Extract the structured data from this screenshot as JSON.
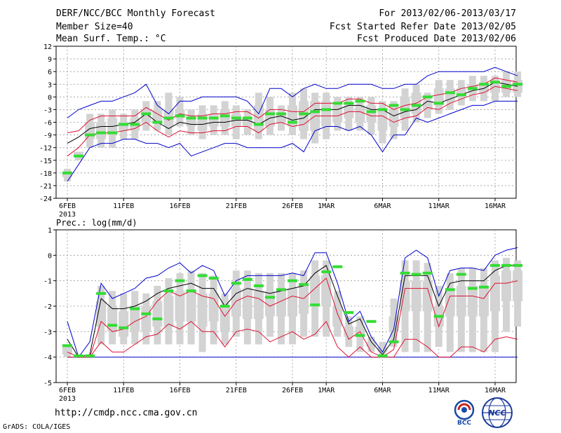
{
  "header": {
    "title": "DERF/NCC/BCC Monthly Forecast",
    "member_size": "Member Size=40",
    "variable": "Mean Surf. Temp.: °C",
    "period": "For 2013/02/06-2013/03/17",
    "started_refer": "Fcst Started Refer Date 2013/02/05",
    "produced": "Fcst Produced Date 2013/02/06"
  },
  "footer": {
    "url": "http://cmdp.ncc.cma.gov.cn",
    "grads": "GrADS: COLA/IGES",
    "logo_bcc": "BCC",
    "logo_ncc": "NCC"
  },
  "colors": {
    "box": "#d3d3d3",
    "observed": "#33dd33",
    "mean": "#000000",
    "spread": "#dd1133",
    "envelope": "#0000cc",
    "grid": "#999999"
  },
  "chart_data": [
    {
      "type": "box-plume",
      "title": "Mean Surf. Temp.: °C",
      "xlabel": "",
      "ylabel": "°C",
      "ylim": [
        -24,
        12
      ],
      "yticks": [
        12,
        9,
        6,
        3,
        0,
        -3,
        -6,
        -9,
        -12,
        -15,
        -18,
        -21,
        -24
      ],
      "xticks": [
        {
          "day": 0,
          "label": "6FEB"
        },
        {
          "day": 5,
          "label": "11FEB"
        },
        {
          "day": 10,
          "label": "16FEB"
        },
        {
          "day": 15,
          "label": "21FEB"
        },
        {
          "day": 20,
          "label": "26FEB"
        },
        {
          "day": 23,
          "label": "1MAR"
        },
        {
          "day": 28,
          "label": "6MAR"
        },
        {
          "day": 33,
          "label": "11MAR"
        },
        {
          "day": 38,
          "label": "16MAR"
        }
      ],
      "year_label": "2013",
      "box_low": [
        -20,
        -15,
        -12,
        -12,
        -12,
        -10,
        -10,
        -8,
        -8,
        -9,
        -7,
        -9,
        -10,
        -9,
        -9,
        -10,
        -9,
        -10,
        -9,
        -8,
        -9,
        -10,
        -11,
        -10,
        -8,
        -8,
        -8,
        -9,
        -11,
        -10,
        -8,
        -6,
        -5,
        -4,
        -3,
        -2,
        -1,
        -1,
        -1,
        0,
        0
      ],
      "box_high": [
        -17,
        -13,
        -4,
        -4,
        -3,
        -4,
        -3,
        -1,
        -1,
        1,
        0,
        -3,
        -2,
        -2,
        -1,
        -2,
        -3,
        1,
        0,
        -2,
        1,
        2,
        1,
        1,
        0,
        0,
        0,
        0,
        -1,
        -1,
        2,
        3,
        1,
        4,
        4,
        4,
        5,
        5,
        5,
        6,
        6
      ],
      "box_q1": [
        -19,
        -14,
        -10,
        -10,
        -9,
        -8,
        -8,
        -6,
        -6,
        -7,
        -5,
        -7,
        -8,
        -7,
        -7,
        -7,
        -7,
        -8,
        -7,
        -6,
        -7,
        -8,
        -8,
        -7,
        -6,
        -5,
        -6,
        -6,
        -8,
        -7,
        -5,
        -4,
        -3,
        -2,
        -1,
        0,
        1,
        1,
        1,
        1,
        1
      ],
      "box_q3": [
        -18,
        -13,
        -6,
        -6,
        -5,
        -6,
        -5,
        -3,
        -3,
        -3,
        -3,
        -5,
        -4,
        -4,
        -3,
        -4,
        -5,
        -2,
        -3,
        -4,
        -2,
        -1,
        -1,
        -1,
        -2,
        -2,
        -2,
        -2,
        -3,
        -3,
        0,
        1,
        -1,
        2,
        2,
        2,
        3,
        3,
        3,
        4,
        4
      ],
      "mean": [
        -11,
        -9.5,
        -7.5,
        -7,
        -7,
        -6.5,
        -6,
        -4,
        -6,
        -7.5,
        -6,
        -6.5,
        -6.5,
        -6,
        -6,
        -5.5,
        -5.5,
        -6.5,
        -5,
        -4.5,
        -5.5,
        -5,
        -3,
        -3,
        -3,
        -2,
        -2,
        -3,
        -3,
        -4.5,
        -3.5,
        -3,
        -1,
        -1.5,
        -0.5,
        0.5,
        1.5,
        2,
        3.5,
        3,
        2.5
      ],
      "red_upper": [
        -8.5,
        -8,
        -5.5,
        -4.5,
        -4.5,
        -4.5,
        -4.5,
        -2.5,
        -4,
        -5.5,
        -4,
        -4.5,
        -4.5,
        -4,
        -4,
        -3.5,
        -3.5,
        -5,
        -3,
        -3,
        -3.5,
        -3.5,
        -1.5,
        -1.5,
        -1.5,
        -0.5,
        -0.5,
        -1.5,
        -1.5,
        -3,
        -2,
        -1.5,
        0,
        0.5,
        1,
        2,
        2.5,
        3,
        4.5,
        4,
        3.5
      ],
      "red_lower": [
        -14,
        -12,
        -9,
        -8.5,
        -8.5,
        -8,
        -7.5,
        -6,
        -8,
        -9.5,
        -8,
        -8.5,
        -8.5,
        -8,
        -8,
        -7,
        -7,
        -8.5,
        -6.5,
        -6,
        -7,
        -6.5,
        -4.5,
        -4.5,
        -4.5,
        -3.5,
        -3.5,
        -4.5,
        -4.5,
        -6,
        -5,
        -4.5,
        -2.5,
        -3,
        -1.5,
        -0.5,
        0.5,
        1,
        2.5,
        2,
        1.5
      ],
      "blue_upper": [
        -5,
        -3,
        -2,
        -1,
        -1,
        0,
        1,
        3,
        -2,
        -4,
        -1,
        -1,
        0,
        0,
        0,
        0,
        -1,
        -4,
        2,
        2,
        0,
        2,
        3,
        2,
        2,
        3,
        3,
        3,
        2,
        2,
        3,
        3,
        5,
        6,
        6,
        6,
        6,
        6,
        7,
        6,
        5
      ],
      "blue_lower": [
        -20,
        -16,
        -12,
        -11,
        -11,
        -10,
        -10,
        -11,
        -11,
        -12,
        -11,
        -14,
        -13,
        -12,
        -11,
        -11,
        -12,
        -12,
        -12,
        -12,
        -11,
        -13,
        -8,
        -7,
        -7,
        -8,
        -7,
        -9,
        -13,
        -9,
        -9,
        -5,
        -6,
        -5,
        -4,
        -3,
        -2,
        -2,
        -1,
        -1,
        -1
      ],
      "observed": [
        -18,
        -14,
        -9,
        -8.5,
        -8.5,
        -6.5,
        -6.5,
        -4,
        -6,
        -5,
        -4.5,
        -5,
        -5,
        -5,
        -4.5,
        -5,
        -5,
        -6.5,
        -4,
        -4,
        -6,
        -4,
        -3.5,
        -3,
        -1.5,
        -1.5,
        -1,
        -3.5,
        -3,
        -2,
        -3,
        -2,
        0,
        -1.5,
        1,
        0.5,
        2,
        3,
        3.5,
        2.5,
        3
      ]
    },
    {
      "type": "box-plume",
      "title": "Prec.: log(mm/d)",
      "xlabel": "",
      "ylabel": "log(mm/d)",
      "ylim": [
        -5,
        1
      ],
      "yticks": [
        1,
        0,
        -1,
        -2,
        -3,
        -4,
        -5
      ],
      "xticks": [
        {
          "day": 0,
          "label": "6FEB"
        },
        {
          "day": 5,
          "label": "11FEB"
        },
        {
          "day": 10,
          "label": "16FEB"
        },
        {
          "day": 15,
          "label": "21FEB"
        },
        {
          "day": 20,
          "label": "26FEB"
        },
        {
          "day": 23,
          "label": "1MAR"
        },
        {
          "day": 28,
          "label": "6MAR"
        },
        {
          "day": 33,
          "label": "11MAR"
        },
        {
          "day": 38,
          "label": "16MAR"
        }
      ],
      "year_label": "2013",
      "box_low": [
        -4,
        -4,
        -4,
        -3.5,
        -3.5,
        -3.5,
        -3.5,
        -3.5,
        -3.5,
        -3.5,
        -3.5,
        -3.5,
        -3.8,
        -3.5,
        -3.5,
        -3.2,
        -3.5,
        -3.5,
        -3.2,
        -3.5,
        -3.5,
        -3.2,
        -3.2,
        -3.2,
        -3.2,
        -3.6,
        -3.8,
        -3.8,
        -4,
        -3.6,
        -3.8,
        -3.8,
        -3.8,
        -3.6,
        -3.8,
        -3.8,
        -3.8,
        -3.8,
        -3.8,
        -3,
        -2.8
      ],
      "box_high": [
        -3.5,
        -4,
        -4,
        -1.2,
        -1.4,
        -1.5,
        -1.4,
        -1.5,
        -1.2,
        -0.9,
        -0.7,
        -0.6,
        -0.7,
        -0.8,
        -1.5,
        -0.6,
        -0.6,
        -0.7,
        -0.7,
        -0.7,
        -0.7,
        -0.6,
        -0.2,
        -0.2,
        -1.4,
        -2.4,
        -2.4,
        -3.2,
        -3.4,
        -1.7,
        -0.2,
        -0.2,
        -0.3,
        -1.2,
        -0.7,
        -0.5,
        -0.5,
        -0.5,
        -0.2,
        -0.1,
        -0.2
      ],
      "box_q1": [
        -3.9,
        -4,
        -4,
        -2.8,
        -3,
        -3.2,
        -3,
        -3,
        -2.8,
        -2.8,
        -2.6,
        -2.6,
        -2.8,
        -2.6,
        -3,
        -2.4,
        -2.5,
        -2.5,
        -2.4,
        -2.4,
        -2.4,
        -2.3,
        -2,
        -2,
        -2.8,
        -3.2,
        -3.2,
        -3.6,
        -3.8,
        -3,
        -2.2,
        -2.2,
        -2.2,
        -2.8,
        -2.4,
        -2.4,
        -2.4,
        -2.4,
        -2.2,
        -1.8,
        -1.8
      ],
      "box_q3": [
        -3.6,
        -4,
        -4,
        -1.8,
        -2,
        -2.2,
        -2,
        -2,
        -1.8,
        -1.6,
        -1.4,
        -1.4,
        -1.5,
        -1.5,
        -2,
        -1.3,
        -1.3,
        -1.4,
        -1.4,
        -1.4,
        -1.3,
        -1.2,
        -0.8,
        -0.8,
        -2,
        -2.8,
        -2.8,
        -3.4,
        -3.6,
        -2.4,
        -1,
        -1,
        -1,
        -2,
        -1.4,
        -1.2,
        -1.2,
        -1.2,
        -0.8,
        -0.6,
        -0.6
      ],
      "mean": [
        -3.3,
        -4,
        -3.9,
        -1.7,
        -2.1,
        -2.1,
        -2,
        -1.8,
        -1.5,
        -1.3,
        -1.2,
        -1.1,
        -1.3,
        -1.3,
        -2,
        -1.5,
        -1.3,
        -1.4,
        -1.5,
        -1.4,
        -1.3,
        -1.2,
        -0.7,
        -0.4,
        -1.6,
        -2.7,
        -2.5,
        -3.4,
        -3.9,
        -3.3,
        -0.8,
        -0.8,
        -0.8,
        -2,
        -1.1,
        -1,
        -1,
        -1,
        -0.6,
        -0.4,
        -0.4
      ],
      "red_upper": [
        -3.8,
        -4,
        -4,
        -2.6,
        -3,
        -2.9,
        -2.6,
        -2.4,
        -1.8,
        -1.4,
        -1.6,
        -1.4,
        -1.6,
        -1.7,
        -2.4,
        -1.8,
        -1.6,
        -1.7,
        -2,
        -1.8,
        -1.6,
        -1.7,
        -1.3,
        -0.9,
        -2.3,
        -3.3,
        -3,
        -3.8,
        -4,
        -3.7,
        -1.3,
        -1.3,
        -1.3,
        -2.8,
        -1.6,
        -1.6,
        -1.6,
        -1.7,
        -1.1,
        -1.1,
        -1
      ],
      "red_lower": [
        -4,
        -4,
        -4,
        -3.4,
        -3.8,
        -3.8,
        -3.5,
        -3.2,
        -3.1,
        -2.7,
        -2.9,
        -2.6,
        -3,
        -3,
        -3.6,
        -3,
        -2.9,
        -3,
        -3.4,
        -3.2,
        -3,
        -3.3,
        -3.1,
        -2.6,
        -3.6,
        -4,
        -3.6,
        -4,
        -4,
        -4,
        -3.3,
        -3.3,
        -3.6,
        -4,
        -4,
        -3.6,
        -3.6,
        -3.8,
        -3.3,
        -3.2,
        -3.3
      ],
      "blue_upper": [
        -2.6,
        -4,
        -3.4,
        -1.1,
        -1.7,
        -1.5,
        -1.3,
        -0.9,
        -0.8,
        -0.5,
        -0.3,
        -0.7,
        -0.4,
        -0.6,
        -1.6,
        -1,
        -0.8,
        -0.8,
        -0.8,
        -0.8,
        -0.7,
        -0.8,
        0.1,
        0.1,
        -1.1,
        -2.6,
        -2.2,
        -3.2,
        -3.8,
        -2.9,
        -0.1,
        0.2,
        -0.1,
        -1.6,
        -0.6,
        -0.5,
        -0.5,
        -0.6,
        0,
        0.2,
        0.3
      ],
      "blue_lower": [
        -4,
        -4,
        -4,
        -4,
        -4,
        -4,
        -4,
        -4,
        -4,
        -4,
        -4,
        -4,
        -4,
        -4,
        -4,
        -4,
        -4,
        -4,
        -4,
        -4,
        -4,
        -4,
        -4,
        -4,
        -4,
        -4,
        -4,
        -4,
        -4,
        -4,
        -4,
        -4,
        -4,
        -4,
        -4,
        -4,
        -4,
        -4,
        -4,
        -4,
        -4
      ],
      "observed": [
        -3.55,
        -3.95,
        -3.95,
        -1.5,
        -2.75,
        -2.85,
        -2.1,
        -2.3,
        -2.5,
        -1.4,
        -1,
        -1.4,
        -0.8,
        -0.9,
        -2,
        -1.1,
        -0.95,
        -1.2,
        -1.65,
        -1.35,
        -1,
        -1.15,
        -1.95,
        -0.65,
        -0.45,
        -2.25,
        -3.15,
        -2.6,
        -3.95,
        -3.4,
        -0.7,
        -0.75,
        -0.7,
        -2.4,
        -1.35,
        -0.75,
        -1.3,
        -1.25,
        -0.4,
        -0.4,
        -0.4
      ]
    }
  ]
}
